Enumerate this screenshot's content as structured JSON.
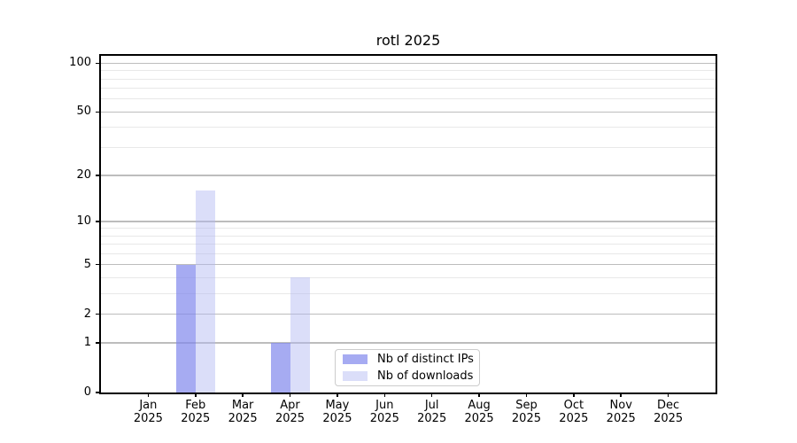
{
  "chart_data": {
    "type": "bar",
    "title": "rotl 2025",
    "categories": [
      "Jan",
      "Feb",
      "Mar",
      "Apr",
      "May",
      "Jun",
      "Jul",
      "Aug",
      "Sep",
      "Oct",
      "Nov",
      "Dec"
    ],
    "x_year": "2025",
    "series": [
      {
        "name": "Nb of distinct IPs",
        "swatch_hex": "#a6abf2",
        "bar_rgba": "rgba(128,135,236,0.7)",
        "values": [
          0,
          5,
          0,
          1,
          0,
          0,
          0,
          0,
          0,
          0,
          0,
          0
        ]
      },
      {
        "name": "Nb of downloads",
        "swatch_hex": "#dbdef9",
        "bar_rgba": "rgba(175,182,242,0.45)",
        "values": [
          0,
          16,
          0,
          4,
          0,
          0,
          0,
          0,
          0,
          0,
          0,
          0
        ]
      }
    ],
    "yscale": "log1p",
    "yticks": [
      0,
      1,
      2,
      5,
      10,
      20,
      50,
      100
    ],
    "minor_gridlines": [
      3,
      4,
      6,
      7,
      8,
      9,
      30,
      40,
      60,
      70,
      80,
      90
    ],
    "ylim": [
      0,
      111
    ],
    "xlabel": "",
    "ylabel": "",
    "grid": "on",
    "legend_position": "inside-bottom-center",
    "colors": {
      "major_grid": "#bdbdbd",
      "minor_grid": "#e8e8e8",
      "spine": "#000000",
      "background": "#ffffff"
    }
  }
}
